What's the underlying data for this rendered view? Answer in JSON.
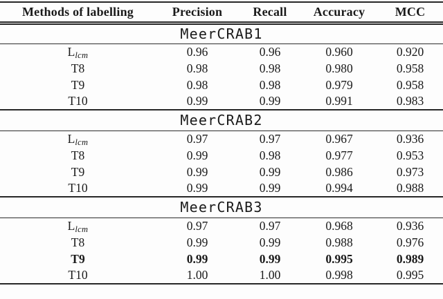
{
  "page": {
    "background": "#fdfdfd",
    "text_color": "#1a1a1a",
    "rule_color": "#262626"
  },
  "table": {
    "columns": [
      "Methods of labelling",
      "Precision",
      "Recall",
      "Accuracy",
      "MCC"
    ],
    "sections": [
      {
        "title": "MeerCRAB1",
        "rows": [
          {
            "method": "L",
            "sub": "lcm",
            "values": [
              "0.96",
              "0.96",
              "0.960",
              "0.920"
            ],
            "bold": false
          },
          {
            "method": "T8",
            "sub": "",
            "values": [
              "0.98",
              "0.98",
              "0.980",
              "0.958"
            ],
            "bold": false
          },
          {
            "method": "T9",
            "sub": "",
            "values": [
              "0.98",
              "0.98",
              "0.979",
              "0.958"
            ],
            "bold": false
          },
          {
            "method": "T10",
            "sub": "",
            "values": [
              "0.99",
              "0.99",
              "0.991",
              "0.983"
            ],
            "bold": false
          }
        ]
      },
      {
        "title": "MeerCRAB2",
        "rows": [
          {
            "method": "L",
            "sub": "lcm",
            "values": [
              "0.97",
              "0.97",
              "0.967",
              "0.936"
            ],
            "bold": false
          },
          {
            "method": "T8",
            "sub": "",
            "values": [
              "0.99",
              "0.98",
              "0.977",
              "0.953"
            ],
            "bold": false
          },
          {
            "method": "T9",
            "sub": "",
            "values": [
              "0.99",
              "0.99",
              "0.986",
              "0.973"
            ],
            "bold": false
          },
          {
            "method": "T10",
            "sub": "",
            "values": [
              "0.99",
              "0.99",
              "0.994",
              "0.988"
            ],
            "bold": false
          }
        ]
      },
      {
        "title": "MeerCRAB3",
        "rows": [
          {
            "method": "L",
            "sub": "lcm",
            "values": [
              "0.97",
              "0.97",
              "0.968",
              "0.936"
            ],
            "bold": false
          },
          {
            "method": "T8",
            "sub": "",
            "values": [
              "0.99",
              "0.99",
              "0.988",
              "0.976"
            ],
            "bold": false
          },
          {
            "method": "T9",
            "sub": "",
            "values": [
              "0.99",
              "0.99",
              "0.995",
              "0.989"
            ],
            "bold": true
          },
          {
            "method": "T10",
            "sub": "",
            "values": [
              "1.00",
              "1.00",
              "0.998",
              "0.995"
            ],
            "bold": false
          }
        ]
      }
    ]
  }
}
